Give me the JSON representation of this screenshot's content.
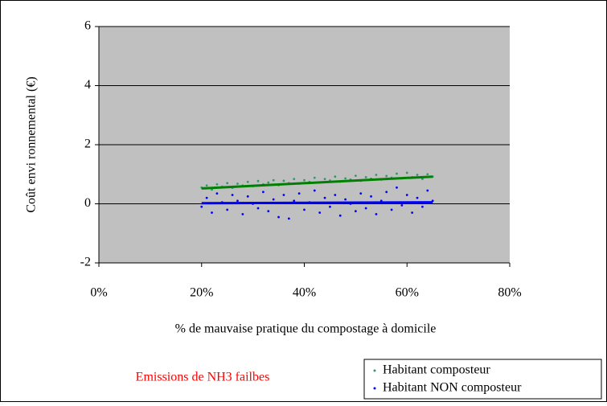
{
  "chart_data": {
    "type": "scatter",
    "xlabel": "% de mauvaise pratique du compostage à domicile",
    "ylabel": "Coût envi ronnemental (€)",
    "annotation": "Emissions de NH3 failbes",
    "xlim": [
      0,
      80
    ],
    "xticks": [
      {
        "value": 0,
        "label": "0%"
      },
      {
        "value": 20,
        "label": "20%"
      },
      {
        "value": 40,
        "label": "40%"
      },
      {
        "value": 60,
        "label": "60%"
      },
      {
        "value": 80,
        "label": "80%"
      }
    ],
    "ylim": [
      -2,
      6
    ],
    "yticks": [
      -2,
      0,
      2,
      4,
      6
    ],
    "grid": true,
    "legend": "bottom-right",
    "series": [
      {
        "name": "Habitant composteur",
        "color": "#339966",
        "line_color": "#008000",
        "x": [
          20,
          21,
          22,
          23,
          24,
          25,
          26,
          27,
          28,
          29,
          30,
          31,
          32,
          33,
          34,
          35,
          36,
          37,
          38,
          39,
          40,
          41,
          42,
          43,
          44,
          45,
          46,
          47,
          48,
          49,
          50,
          51,
          52,
          53,
          54,
          55,
          56,
          57,
          58,
          59,
          60,
          61,
          62,
          63,
          64,
          65
        ],
        "values": [
          0.55,
          0.62,
          0.48,
          0.66,
          0.58,
          0.7,
          0.54,
          0.68,
          0.62,
          0.74,
          0.6,
          0.77,
          0.66,
          0.72,
          0.8,
          0.63,
          0.78,
          0.7,
          0.84,
          0.68,
          0.8,
          0.74,
          0.88,
          0.72,
          0.84,
          0.79,
          0.92,
          0.75,
          0.86,
          0.82,
          0.95,
          0.78,
          0.9,
          0.85,
          0.98,
          0.82,
          0.94,
          0.88,
          1.02,
          0.86,
          1.05,
          0.9,
          0.98,
          0.84,
          1.0,
          0.92
        ],
        "trendline": {
          "x": [
            20,
            65
          ],
          "values": [
            0.52,
            0.92
          ]
        }
      },
      {
        "name": "Habitant NON composteur",
        "color": "#0000ff",
        "line_color": "#0000ff",
        "x": [
          20,
          21,
          22,
          23,
          24,
          25,
          26,
          27,
          28,
          29,
          30,
          31,
          32,
          33,
          34,
          35,
          36,
          37,
          38,
          39,
          40,
          41,
          42,
          43,
          44,
          45,
          46,
          47,
          48,
          49,
          50,
          51,
          52,
          53,
          54,
          55,
          56,
          57,
          58,
          59,
          60,
          61,
          62,
          63,
          64,
          65
        ],
        "values": [
          -0.1,
          0.2,
          -0.3,
          0.35,
          0.05,
          -0.2,
          0.3,
          0.1,
          -0.35,
          0.25,
          0.0,
          -0.15,
          0.4,
          -0.25,
          0.15,
          -0.45,
          0.3,
          -0.5,
          0.1,
          0.35,
          -0.2,
          0.05,
          0.45,
          -0.3,
          0.2,
          -0.1,
          0.3,
          -0.4,
          0.15,
          0.0,
          -0.25,
          0.35,
          -0.15,
          0.25,
          -0.35,
          0.1,
          0.4,
          -0.2,
          0.55,
          -0.05,
          0.3,
          -0.3,
          0.2,
          -0.1,
          0.45,
          0.1
        ],
        "trendline": {
          "x": [
            20,
            65
          ],
          "values": [
            0.02,
            0.05
          ]
        }
      }
    ]
  }
}
